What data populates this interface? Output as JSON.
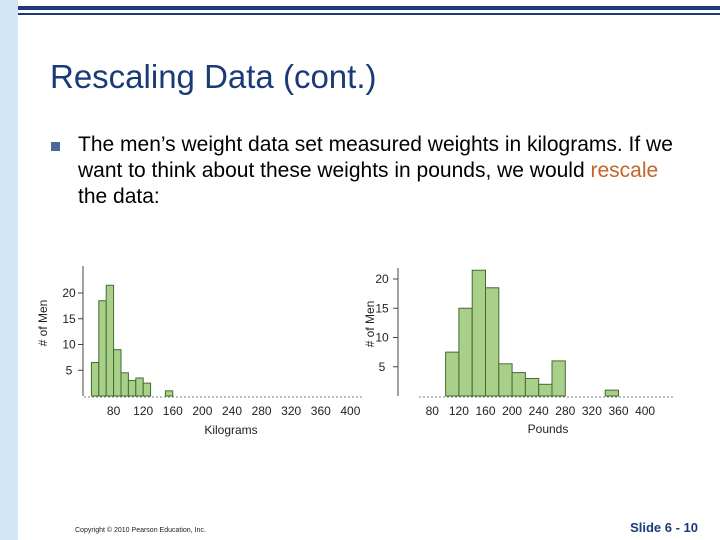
{
  "slide": {
    "title": "Rescaling Data (cont.)",
    "bullet_pre": "The men’s weight data set measured weights in kilograms. If we want to think about these weights in pounds, we would ",
    "bullet_highlight": "rescale",
    "bullet_post": " the data:",
    "copyright": "Copyright © 2010 Pearson Education, Inc.",
    "slide_number": "Slide 6 - 10"
  },
  "colors": {
    "title": "#1a3a78",
    "highlight": "#c0662a",
    "bar_fill": "#a9cf8a",
    "bar_stroke": "#3f6f2c"
  },
  "chart_data": [
    {
      "type": "bar",
      "title": "",
      "xlabel": "Kilograms",
      "ylabel": "# of Men",
      "xlim": [
        40,
        400
      ],
      "ylim": [
        0,
        23
      ],
      "xticks": [
        80,
        120,
        160,
        200,
        240,
        280,
        320,
        360,
        400
      ],
      "yticks": [
        5,
        10,
        15,
        20
      ],
      "bin_width": 10,
      "bins": [
        {
          "x0": 50,
          "x1": 60,
          "value": 6.5
        },
        {
          "x0": 60,
          "x1": 70,
          "value": 18.5
        },
        {
          "x0": 70,
          "x1": 80,
          "value": 21.5
        },
        {
          "x0": 80,
          "x1": 90,
          "value": 9
        },
        {
          "x0": 90,
          "x1": 100,
          "value": 4.5
        },
        {
          "x0": 100,
          "x1": 110,
          "value": 3
        },
        {
          "x0": 110,
          "x1": 120,
          "value": 3.5
        },
        {
          "x0": 120,
          "x1": 130,
          "value": 2.5
        },
        {
          "x0": 150,
          "x1": 160,
          "value": 1
        }
      ]
    },
    {
      "type": "bar",
      "title": "",
      "xlabel": "Pounds",
      "ylabel": "# of Men",
      "xlim": [
        60,
        400
      ],
      "ylim": [
        0,
        22
      ],
      "xticks": [
        80,
        120,
        160,
        200,
        240,
        280,
        320,
        360,
        400
      ],
      "yticks": [
        5,
        10,
        15,
        20
      ],
      "bin_width": 20,
      "bins": [
        {
          "x0": 100,
          "x1": 120,
          "value": 7.5
        },
        {
          "x0": 120,
          "x1": 140,
          "value": 15
        },
        {
          "x0": 140,
          "x1": 160,
          "value": 21.5
        },
        {
          "x0": 160,
          "x1": 180,
          "value": 18.5
        },
        {
          "x0": 180,
          "x1": 200,
          "value": 5.5
        },
        {
          "x0": 200,
          "x1": 220,
          "value": 4
        },
        {
          "x0": 220,
          "x1": 240,
          "value": 3
        },
        {
          "x0": 240,
          "x1": 260,
          "value": 2
        },
        {
          "x0": 260,
          "x1": 280,
          "value": 6
        },
        {
          "x0": 340,
          "x1": 360,
          "value": 1
        }
      ]
    }
  ]
}
